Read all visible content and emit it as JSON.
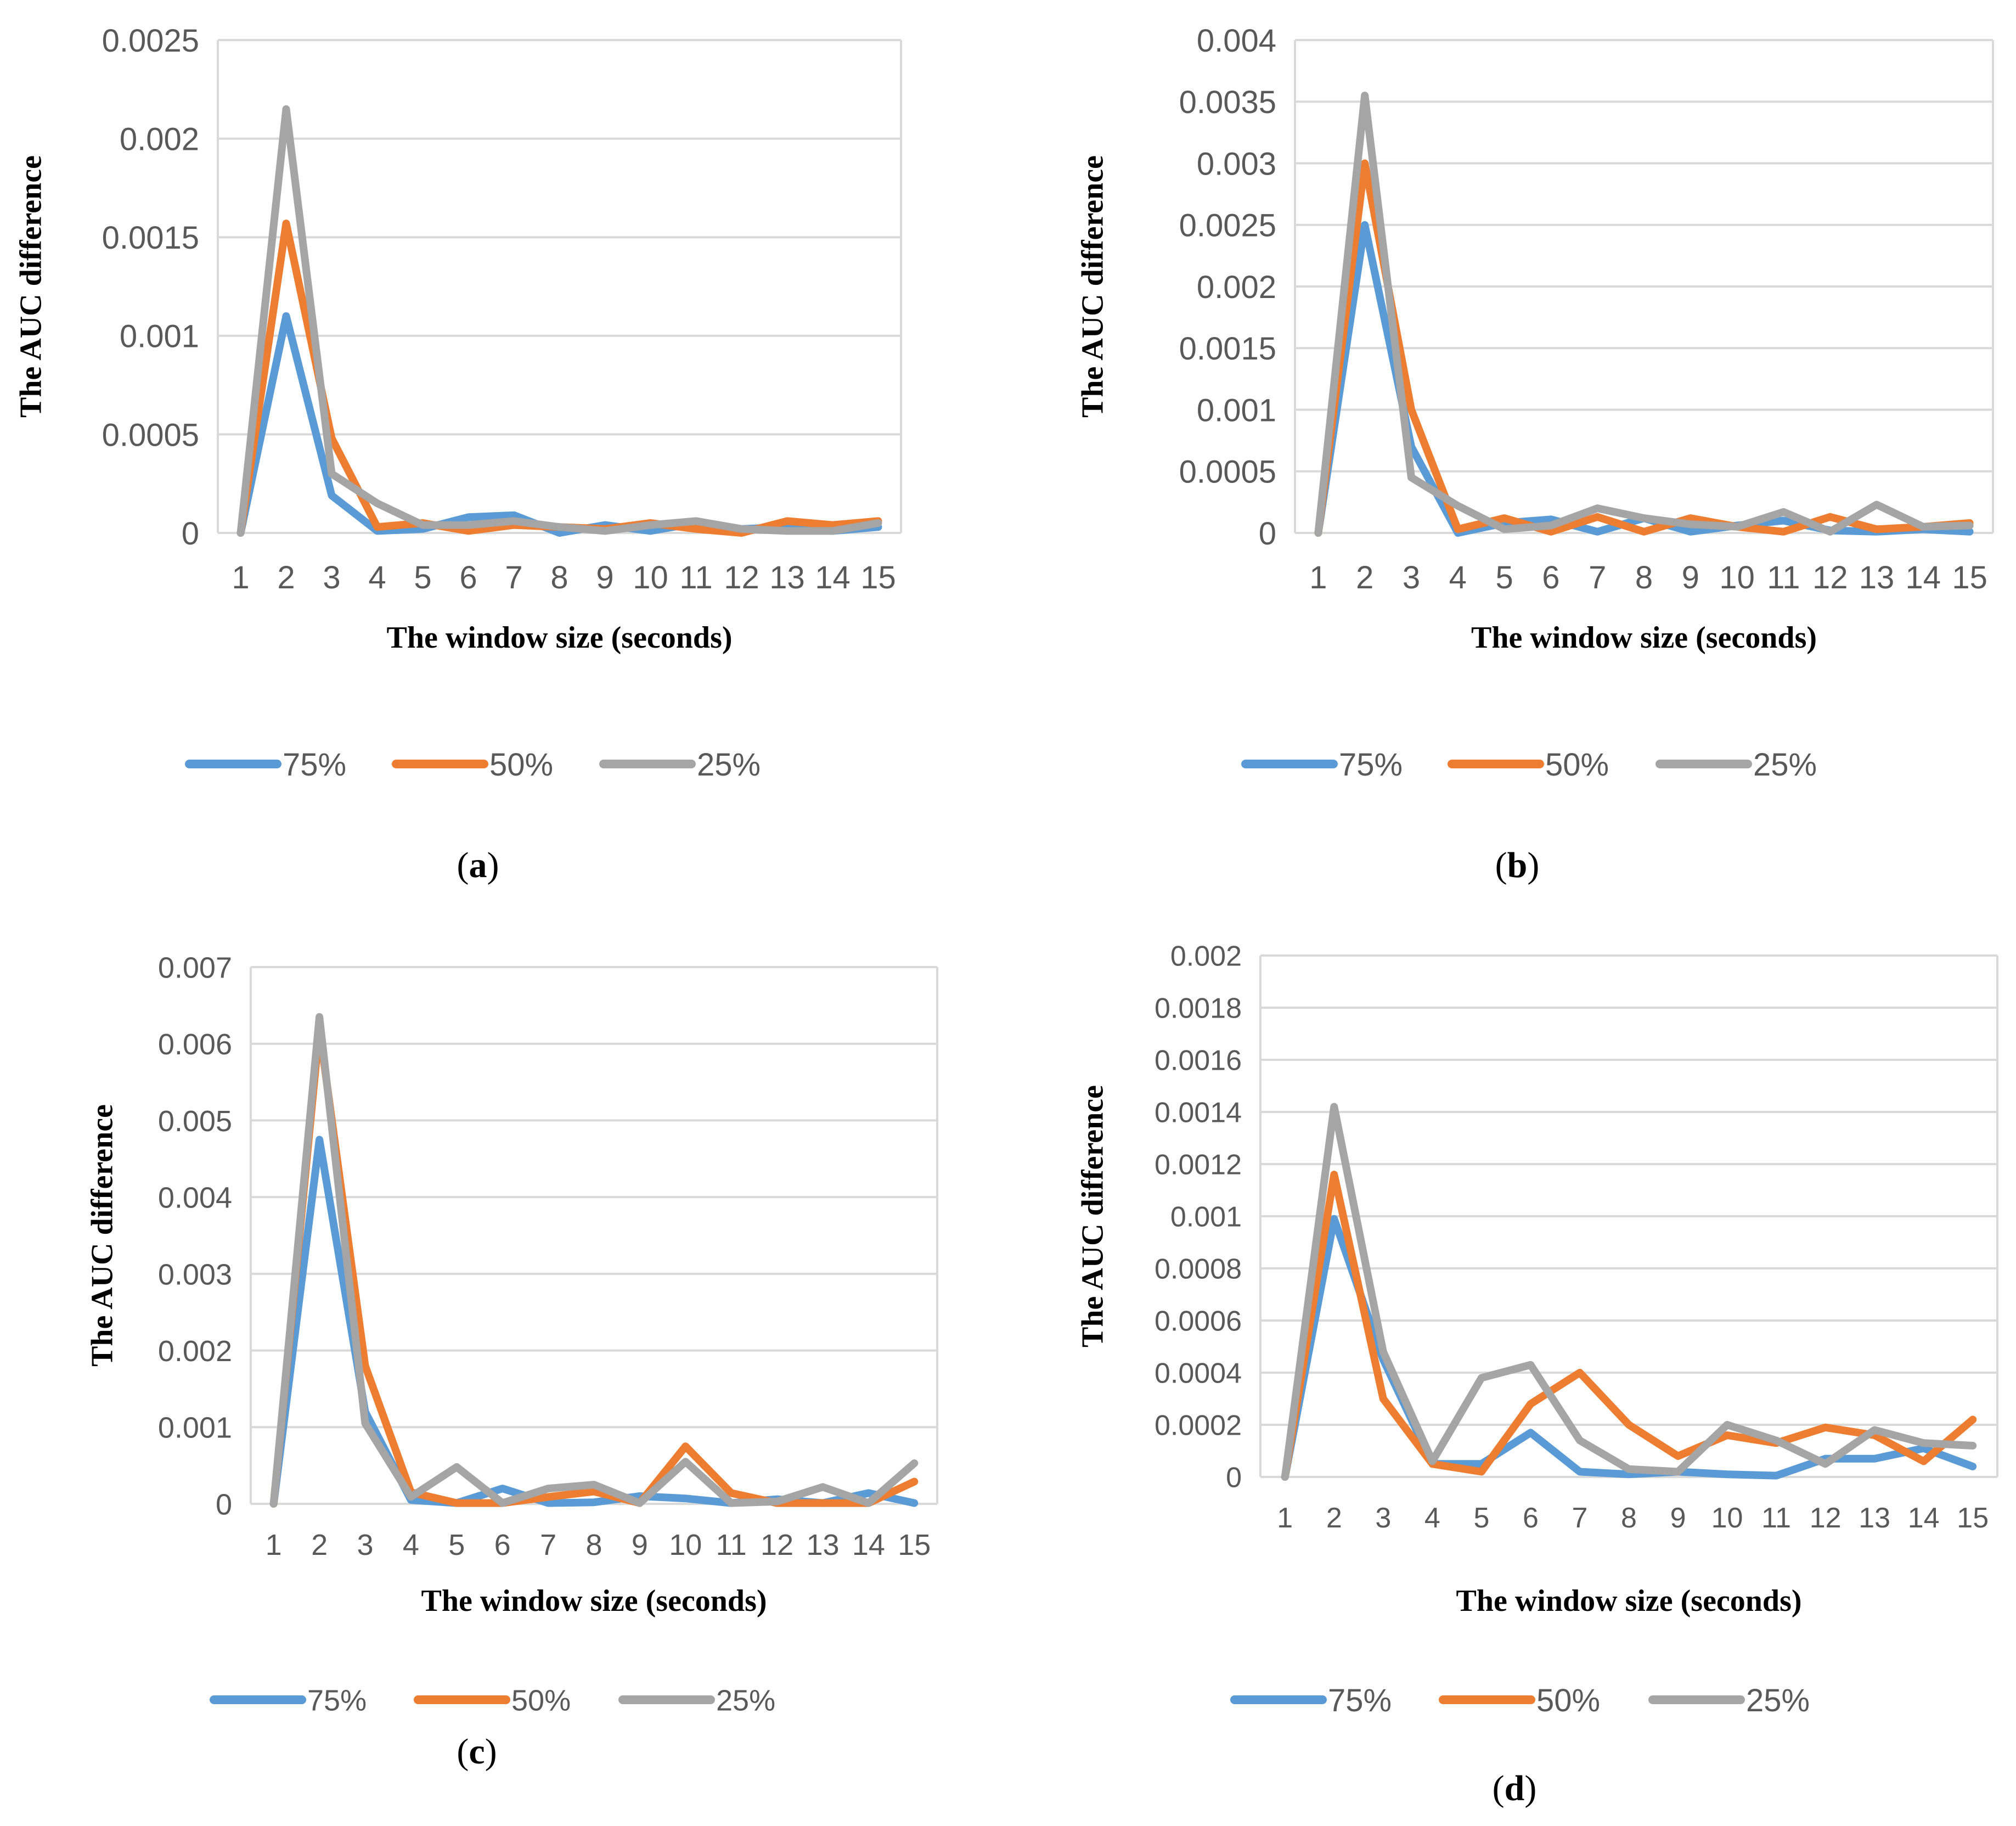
{
  "chart_data": [
    {
      "type": "line",
      "panel_label": "a",
      "xlabel": "The window size (seconds)",
      "ylabel": "The AUC difference",
      "categories": [
        "1",
        "2",
        "3",
        "4",
        "5",
        "6",
        "7",
        "8",
        "9",
        "10",
        "11",
        "12",
        "13",
        "14",
        "15"
      ],
      "ylim": [
        0,
        0.0025
      ],
      "yticks": [
        "0",
        "0.0005",
        "0.001",
        "0.0015",
        "0.002",
        "0.0025"
      ],
      "grid": true,
      "legend": "bottom",
      "series": [
        {
          "name": "75%",
          "color": "#5B9BD5",
          "values": [
            0,
            0.0011,
            0.00019,
            1e-05,
            2e-05,
            8e-05,
            9e-05,
            0.0,
            4e-05,
            1e-05,
            5e-05,
            2e-05,
            3e-05,
            1e-05,
            3e-05
          ]
        },
        {
          "name": "50%",
          "color": "#ED7D31",
          "values": [
            0,
            0.00157,
            0.00048,
            3e-05,
            5e-05,
            1e-05,
            4e-05,
            3e-05,
            2e-05,
            5e-05,
            2e-05,
            0.0,
            6e-05,
            4e-05,
            6e-05
          ]
        },
        {
          "name": "25%",
          "color": "#A5A5A5",
          "values": [
            0,
            0.00215,
            0.0003,
            0.00015,
            4e-05,
            4e-05,
            6e-05,
            3e-05,
            1e-05,
            4e-05,
            6e-05,
            2e-05,
            1e-05,
            1e-05,
            5e-05
          ]
        }
      ]
    },
    {
      "type": "line",
      "panel_label": "b",
      "xlabel": "The window size (seconds)",
      "ylabel": "The AUC difference",
      "categories": [
        "1",
        "2",
        "3",
        "4",
        "5",
        "6",
        "7",
        "8",
        "9",
        "10",
        "11",
        "12",
        "13",
        "14",
        "15"
      ],
      "ylim": [
        0,
        0.004
      ],
      "yticks": [
        "0",
        "0.0005",
        "0.001",
        "0.0015",
        "0.002",
        "0.0025",
        "0.003",
        "0.0035",
        "0.004"
      ],
      "grid": true,
      "legend": "bottom",
      "series": [
        {
          "name": "75%",
          "color": "#5B9BD5",
          "values": [
            0,
            0.0025,
            0.0007,
            0.0,
            8e-05,
            0.00011,
            1e-05,
            0.00012,
            1e-05,
            6e-05,
            0.0001,
            2e-05,
            1e-05,
            3e-05,
            1e-05
          ]
        },
        {
          "name": "50%",
          "color": "#ED7D31",
          "values": [
            0,
            0.003,
            0.001,
            3e-05,
            0.00012,
            1e-05,
            0.00013,
            1e-05,
            0.00012,
            5e-05,
            1e-05,
            0.00013,
            3e-05,
            5e-05,
            8e-05
          ]
        },
        {
          "name": "25%",
          "color": "#A5A5A5",
          "values": [
            0,
            0.00355,
            0.00045,
            0.00022,
            3e-05,
            6e-05,
            0.0002,
            0.00012,
            7e-05,
            5e-05,
            0.00017,
            1e-05,
            0.00023,
            5e-05,
            6e-05
          ]
        }
      ]
    },
    {
      "type": "line",
      "panel_label": "c",
      "xlabel": "The window size (seconds)",
      "ylabel": "The AUC difference",
      "categories": [
        "1",
        "2",
        "3",
        "4",
        "5",
        "6",
        "7",
        "8",
        "9",
        "10",
        "11",
        "12",
        "13",
        "14",
        "15"
      ],
      "ylim": [
        0,
        0.007
      ],
      "yticks": [
        "0",
        "0.001",
        "0.002",
        "0.003",
        "0.004",
        "0.005",
        "0.006",
        "0.007"
      ],
      "grid": true,
      "legend": "bottom",
      "series": [
        {
          "name": "75%",
          "color": "#5B9BD5",
          "values": [
            0,
            0.00475,
            0.0012,
            5e-05,
            1e-05,
            0.0002,
            1e-05,
            2e-05,
            0.0001,
            7e-05,
            1e-05,
            6e-05,
            1e-05,
            0.00014,
            1e-05
          ]
        },
        {
          "name": "50%",
          "color": "#ED7D31",
          "values": [
            0,
            0.0062,
            0.0018,
            0.00015,
            1e-05,
            1e-05,
            9e-05,
            0.00016,
            1e-05,
            0.00075,
            0.00014,
            1e-05,
            1e-05,
            1e-05,
            0.00029
          ]
        },
        {
          "name": "25%",
          "color": "#A5A5A5",
          "values": [
            0,
            0.00635,
            0.00105,
            9e-05,
            0.00048,
            1e-05,
            0.0002,
            0.00025,
            1e-05,
            0.00055,
            1e-05,
            3e-05,
            0.00022,
            1e-05,
            0.00053
          ]
        }
      ]
    },
    {
      "type": "line",
      "panel_label": "d",
      "xlabel": "The window size (seconds)",
      "ylabel": "The AUC difference",
      "categories": [
        "1",
        "2",
        "3",
        "4",
        "5",
        "6",
        "7",
        "8",
        "9",
        "10",
        "11",
        "12",
        "13",
        "14",
        "15"
      ],
      "ylim": [
        0,
        0.002
      ],
      "yticks": [
        "0",
        "0.0002",
        "0.0004",
        "0.0006",
        "0.0008",
        "0.001",
        "0.0012",
        "0.0014",
        "0.0016",
        "0.0018",
        "0.002"
      ],
      "grid": true,
      "legend": "bottom",
      "series": [
        {
          "name": "75%",
          "color": "#5B9BD5",
          "values": [
            0,
            0.00099,
            0.00045,
            5e-05,
            5e-05,
            0.00017,
            2e-05,
            1e-05,
            2e-05,
            1e-05,
            5e-06,
            7e-05,
            7e-05,
            0.00011,
            4e-05
          ]
        },
        {
          "name": "50%",
          "color": "#ED7D31",
          "values": [
            0,
            0.00116,
            0.0003,
            5e-05,
            2e-05,
            0.00028,
            0.0004,
            0.0002,
            8e-05,
            0.00016,
            0.00013,
            0.00019,
            0.00016,
            6e-05,
            0.00022
          ]
        },
        {
          "name": "25%",
          "color": "#A5A5A5",
          "values": [
            0,
            0.00142,
            0.00048,
            6e-05,
            0.00038,
            0.00043,
            0.00014,
            3e-05,
            2e-05,
            0.0002,
            0.00014,
            5e-05,
            0.00018,
            0.00013,
            0.00012
          ]
        }
      ]
    }
  ]
}
